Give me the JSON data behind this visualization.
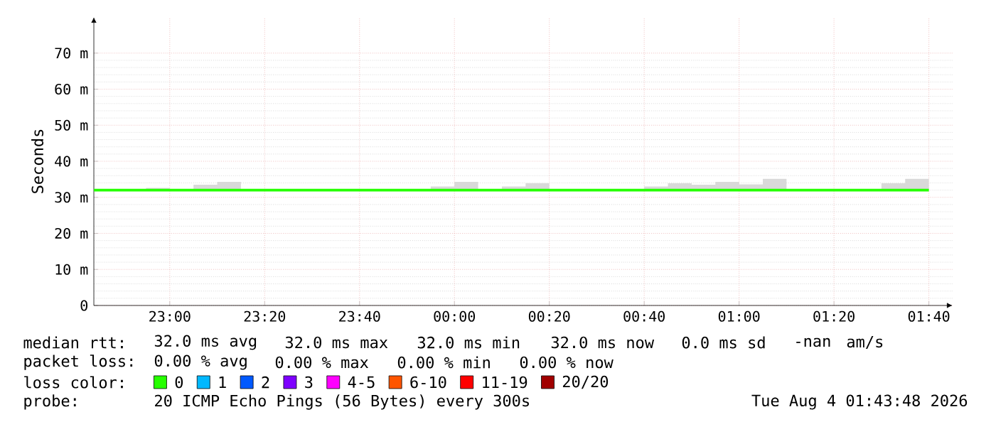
{
  "chart_data": {
    "type": "line",
    "ylabel": "Seconds",
    "x": [
      "2026-08-03T22:44",
      "2026-08-03T22:45",
      "2026-08-03T22:50",
      "2026-08-03T22:55",
      "2026-08-03T23:00",
      "2026-08-03T23:05",
      "2026-08-03T23:10",
      "2026-08-03T23:15",
      "2026-08-03T23:20",
      "2026-08-03T23:25",
      "2026-08-03T23:30",
      "2026-08-03T23:35",
      "2026-08-03T23:40",
      "2026-08-03T23:45",
      "2026-08-03T23:50",
      "2026-08-03T23:55",
      "2026-08-04T00:00",
      "2026-08-04T00:05",
      "2026-08-04T00:10",
      "2026-08-04T00:15",
      "2026-08-04T00:20",
      "2026-08-04T00:25",
      "2026-08-04T00:30",
      "2026-08-04T00:35",
      "2026-08-04T00:40",
      "2026-08-04T00:45",
      "2026-08-04T00:50",
      "2026-08-04T00:55",
      "2026-08-04T01:00",
      "2026-08-04T01:05",
      "2026-08-04T01:10",
      "2026-08-04T01:15",
      "2026-08-04T01:20",
      "2026-08-04T01:25",
      "2026-08-04T01:30",
      "2026-08-04T01:35",
      "2026-08-04T01:40"
    ],
    "series": [
      {
        "name": "0",
        "color": "#26ff00",
        "values": [
          32,
          32,
          32,
          32,
          32,
          32,
          32,
          32,
          32,
          32,
          32,
          32,
          32,
          32,
          32,
          32,
          32,
          32,
          32,
          32,
          32,
          32,
          32,
          32,
          32,
          32,
          32,
          32,
          32,
          32,
          32,
          32,
          32,
          32,
          32,
          32,
          32
        ],
        "lower": [
          32,
          32,
          32,
          32,
          32,
          32,
          32,
          32,
          32,
          32,
          32,
          32,
          32,
          32,
          32,
          32,
          32,
          32,
          32,
          32,
          32,
          32,
          32,
          32,
          32,
          32,
          32,
          32,
          32,
          32,
          32,
          32,
          32,
          32,
          32,
          32,
          32
        ],
        "upper": [
          32,
          32,
          32,
          32.6,
          32,
          33.5,
          34.3,
          32,
          32,
          32,
          32,
          32,
          32,
          32,
          32,
          33.0,
          34.3,
          32,
          33.0,
          33.9,
          32,
          32,
          32,
          32,
          33.0,
          33.9,
          33.5,
          34.3,
          33.6,
          35.1,
          32,
          32,
          32,
          32,
          33.9,
          35.1,
          32
        ]
      },
      {
        "name": "1",
        "color": "#00b8ff",
        "values": [
          null,
          null,
          null,
          null,
          null,
          null,
          null,
          null,
          null,
          null,
          null,
          null,
          null,
          null,
          null,
          null,
          null,
          null,
          null,
          null,
          null,
          null,
          null,
          null,
          null,
          null,
          null,
          null,
          null,
          null,
          null,
          null,
          null,
          null,
          null,
          null,
          null
        ]
      },
      {
        "name": "2",
        "color": "#0059ff",
        "values": [
          null,
          null,
          null,
          null,
          null,
          null,
          null,
          null,
          null,
          null,
          null,
          null,
          null,
          null,
          null,
          null,
          null,
          null,
          null,
          null,
          null,
          null,
          null,
          null,
          null,
          null,
          null,
          null,
          null,
          null,
          null,
          null,
          null,
          null,
          null,
          null,
          null
        ]
      },
      {
        "name": "3",
        "color": "#7e00ff",
        "values": [
          null,
          null,
          null,
          null,
          null,
          null,
          null,
          null,
          null,
          null,
          null,
          null,
          null,
          null,
          null,
          null,
          null,
          null,
          null,
          null,
          null,
          null,
          null,
          null,
          null,
          null,
          null,
          null,
          null,
          null,
          null,
          null,
          null,
          null,
          null,
          null,
          null
        ]
      },
      {
        "name": "4-5",
        "color": "#ff00ff",
        "values": [
          null,
          null,
          null,
          null,
          null,
          null,
          null,
          null,
          null,
          null,
          null,
          null,
          null,
          null,
          null,
          null,
          null,
          null,
          null,
          null,
          null,
          null,
          null,
          null,
          null,
          null,
          null,
          null,
          null,
          null,
          null,
          null,
          null,
          null,
          null,
          null,
          null
        ]
      },
      {
        "name": "6-10",
        "color": "#ff5500",
        "values": [
          null,
          null,
          null,
          null,
          null,
          null,
          null,
          null,
          null,
          null,
          null,
          null,
          null,
          null,
          null,
          null,
          null,
          null,
          null,
          null,
          null,
          null,
          null,
          null,
          null,
          null,
          null,
          null,
          null,
          null,
          null,
          null,
          null,
          null,
          null,
          null,
          null
        ]
      },
      {
        "name": "11-19",
        "color": "#ff0000",
        "values": [
          null,
          null,
          null,
          null,
          null,
          null,
          null,
          null,
          null,
          null,
          null,
          null,
          null,
          null,
          null,
          null,
          null,
          null,
          null,
          null,
          null,
          null,
          null,
          null,
          null,
          null,
          null,
          null,
          null,
          null,
          null,
          null,
          null,
          null,
          null,
          null,
          null
        ]
      },
      {
        "name": "20/20",
        "color": "#a10000",
        "values": [
          null,
          null,
          null,
          null,
          null,
          null,
          null,
          null,
          null,
          null,
          null,
          null,
          null,
          null,
          null,
          null,
          null,
          null,
          null,
          null,
          null,
          null,
          null,
          null,
          null,
          null,
          null,
          null,
          null,
          null,
          null,
          null,
          null,
          null,
          null,
          null,
          null
        ]
      }
    ],
    "xlim": [
      "2026-08-03T22:44",
      "2026-08-04T01:45"
    ],
    "xticks": [
      {
        "value": "2026-08-03T23:00",
        "label": "23:00"
      },
      {
        "value": "2026-08-03T23:20",
        "label": "23:20"
      },
      {
        "value": "2026-08-03T23:40",
        "label": "23:40"
      },
      {
        "value": "2026-08-04T00:00",
        "label": "00:00"
      },
      {
        "value": "2026-08-04T00:20",
        "label": "00:20"
      },
      {
        "value": "2026-08-04T00:40",
        "label": "00:40"
      },
      {
        "value": "2026-08-04T01:00",
        "label": "01:00"
      },
      {
        "value": "2026-08-04T01:20",
        "label": "01:20"
      },
      {
        "value": "2026-08-04T01:40",
        "label": "01:40"
      }
    ],
    "ylim": [
      0,
      80
    ],
    "yticks": [
      0,
      {
        "value": 10,
        "label": "10 m"
      },
      {
        "value": 20,
        "label": "20 m"
      },
      {
        "value": 30,
        "label": "30 m"
      },
      {
        "value": 40,
        "label": "40 m"
      },
      {
        "value": 50,
        "label": "50 m"
      },
      {
        "value": 60,
        "label": "60 m"
      },
      {
        "value": 70,
        "label": "70 m"
      }
    ],
    "grid": true,
    "legend": "bottom",
    "annotations": [
      "median rtt:",
      "32.0 ms avg",
      "32.0 ms max",
      "32.0 ms min",
      "32.0 ms now",
      "0.0 ms sd",
      "-nan",
      "am/s",
      "packet loss:",
      "0.00 % avg",
      "0.00 % max",
      "0.00 % min",
      "0.00 % now",
      "loss color:",
      "probe:",
      "20 ICMP Echo Pings (56 Bytes) every 300s",
      "Tue Aug  4 01:43:48 2026"
    ]
  }
}
